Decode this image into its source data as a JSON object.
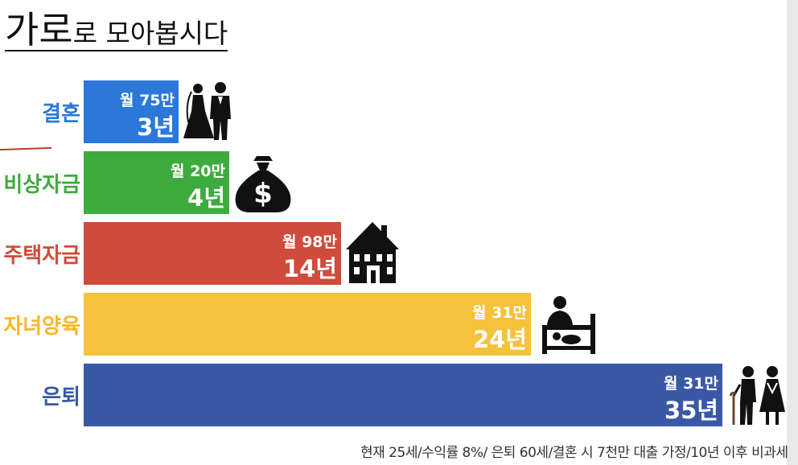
{
  "title": {
    "big": "가로",
    "rest": "로 모아봅시다"
  },
  "footnote": "현재 25세/수익률 8%/ 은퇴 60세/결혼 시 7천만 대출 가정/10년 이후 비과세",
  "chart_data": {
    "type": "bar",
    "orientation": "horizontal",
    "categories": [
      "결혼",
      "비상자금",
      "주택자금",
      "자녀양육",
      "은퇴"
    ],
    "values": [
      3,
      4,
      14,
      24,
      35
    ],
    "value_labels": [
      "3년",
      "4년",
      "14년",
      "24년",
      "35년"
    ],
    "monthly_labels": [
      "월 75만",
      "월 20만",
      "월 98만",
      "월 31만",
      "월 31만"
    ],
    "colors": [
      "#2b78d8",
      "#3eab3e",
      "#cf4b3b",
      "#f5c23c",
      "#3b58a5"
    ],
    "label_colors": [
      "#2b78d8",
      "#3eab3e",
      "#cf4b3b",
      "#f5b82a",
      "#3b58a5"
    ],
    "icons": [
      "wedding-couple-icon",
      "money-bag-icon",
      "house-icon",
      "parent-baby-icon",
      "elderly-couple-icon"
    ],
    "xlabel": "",
    "ylabel": "",
    "grid": false
  }
}
